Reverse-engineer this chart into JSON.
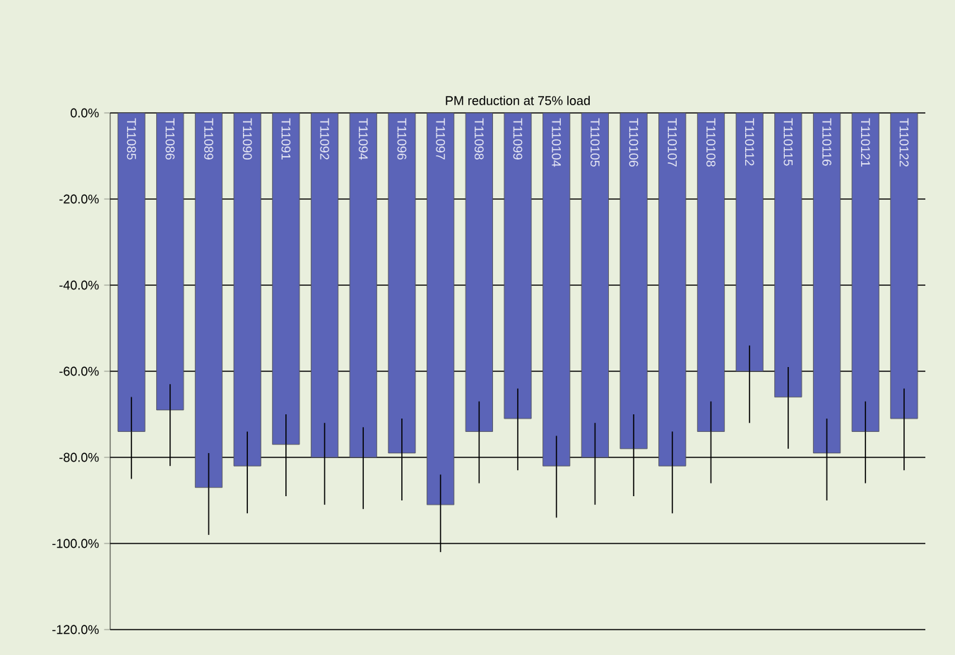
{
  "chart_data": {
    "type": "bar",
    "title": "PM reduction at 75% load",
    "categories": [
      "T11085",
      "T11086",
      "T11089",
      "T11090",
      "T11091",
      "T11092",
      "T11094",
      "T11096",
      "T11097",
      "T11098",
      "T11099",
      "T110104",
      "T110105",
      "T110106",
      "T110107",
      "T110108",
      "T110112",
      "T110115",
      "T110116",
      "T110121",
      "T110122"
    ],
    "values": [
      -74,
      -69,
      -87,
      -82,
      -77,
      -80,
      -80,
      -79,
      -91,
      -74,
      -71,
      -82,
      -80,
      -78,
      -82,
      -74,
      -60,
      -66,
      -79,
      -74,
      -71
    ],
    "errors": [
      [
        -85,
        -66
      ],
      [
        -82,
        -63
      ],
      [
        -98,
        -79
      ],
      [
        -93,
        -74
      ],
      [
        -89,
        -70
      ],
      [
        -91,
        -72
      ],
      [
        -92,
        -73
      ],
      [
        -90,
        -71
      ],
      [
        -102,
        -84
      ],
      [
        -86,
        -67
      ],
      [
        -83,
        -64
      ],
      [
        -94,
        -75
      ],
      [
        -91,
        -72
      ],
      [
        -89,
        -70
      ],
      [
        -93,
        -74
      ],
      [
        -86,
        -67
      ],
      [
        -72,
        -54
      ],
      [
        -78,
        -59
      ],
      [
        -90,
        -71
      ],
      [
        -86,
        -67
      ],
      [
        -83,
        -64
      ]
    ],
    "color": "#5b64b8",
    "ylim": [
      -120,
      0
    ],
    "yticks": [
      {
        "value": -120,
        "label": "-120.0%"
      },
      {
        "value": -100,
        "label": "-100.0%"
      },
      {
        "value": -80,
        "label": "-80.0%"
      },
      {
        "value": -60,
        "label": "-60.0%"
      },
      {
        "value": -40,
        "label": "-40.0%"
      },
      {
        "value": -20,
        "label": "-20.0%"
      },
      {
        "value": 0,
        "label": "0.0%"
      }
    ],
    "grid": "y"
  }
}
